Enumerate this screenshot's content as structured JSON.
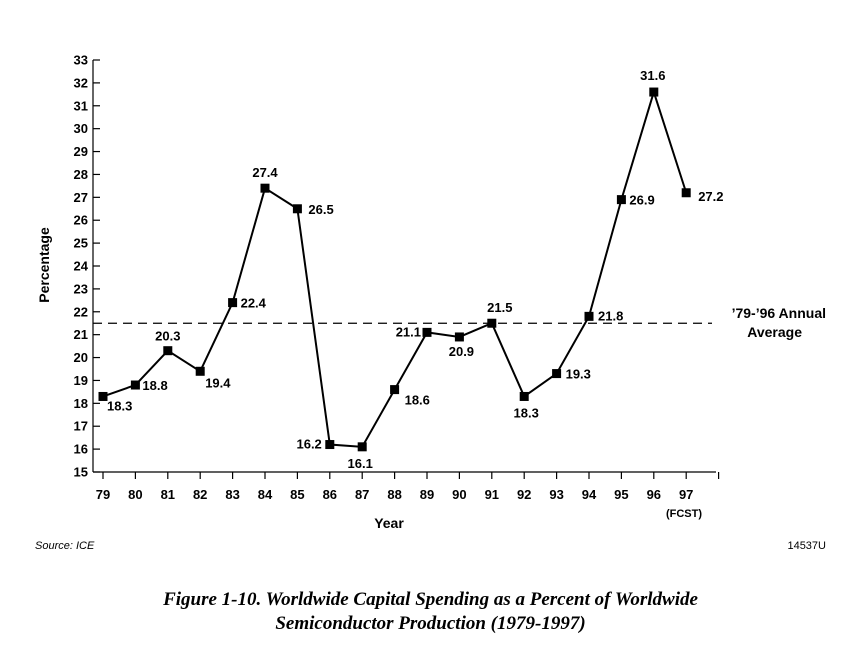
{
  "chart_data": {
    "type": "line",
    "xlabel": "Year",
    "ylabel": "Percentage",
    "ylim": [
      15,
      33
    ],
    "categories": [
      "79",
      "80",
      "81",
      "82",
      "83",
      "84",
      "85",
      "86",
      "87",
      "88",
      "89",
      "90",
      "91",
      "92",
      "93",
      "94",
      "95",
      "96",
      "97"
    ],
    "x_sublabel": "(FCST)",
    "series": [
      {
        "values": [
          18.3,
          18.8,
          20.3,
          19.4,
          22.4,
          27.4,
          26.5,
          16.2,
          16.1,
          18.6,
          21.1,
          20.9,
          21.5,
          18.3,
          19.3,
          21.8,
          26.9,
          31.6,
          27.2
        ]
      }
    ],
    "value_labels": [
      "18.3",
      "18.8",
      "20.3",
      "19.4",
      "22.4",
      "27.4",
      "26.5",
      "16.2",
      "16.1",
      "18.6",
      "21.1",
      "20.9",
      "21.5",
      "18.3",
      "19.3",
      "21.8",
      "26.9",
      "31.6",
      "27.2"
    ],
    "average_line": {
      "value": 21.5,
      "label_line1": "’79-’96 Annual",
      "label_line2": "Average"
    },
    "yticks": [
      "15",
      "16",
      "17",
      "18",
      "19",
      "20",
      "21",
      "22",
      "23",
      "24",
      "25",
      "26",
      "27",
      "28",
      "29",
      "30",
      "31",
      "32",
      "33"
    ],
    "grid": false,
    "marker": "square"
  },
  "source": "Source:  ICE",
  "figure_id": "14537U",
  "caption": {
    "line1": "Figure 1-10.  Worldwide Capital Spending as a Percent of Worldwide",
    "line2": "Semiconductor Production (1979-1997)"
  }
}
